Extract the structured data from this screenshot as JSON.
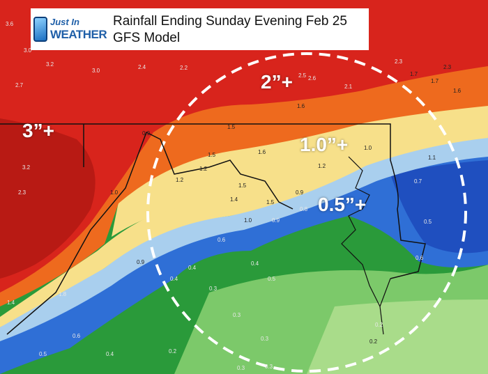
{
  "header": {
    "logo_line1": "Just In",
    "logo_line2": "WEATHER",
    "title_line1": "Rainfall Ending Sunday Evening Feb 25",
    "title_line2": "GFS Model"
  },
  "colors": {
    "red": "#d8241c",
    "dark_red": "#b81a14",
    "orange": "#ee6a1e",
    "light_orange": "#f4a340",
    "yellow": "#f7e08a",
    "light_blue": "#a9cfee",
    "blue": "#2f6fd6",
    "dark_blue": "#1f4fbf",
    "green": "#2a9a3a",
    "light_green": "#8fd17a"
  },
  "callouts": {
    "c3": "3”+",
    "c2": "2”+",
    "c1": "1.0”+",
    "c05": "0.5”+"
  },
  "values": [
    "3.6",
    "3.0",
    "3.2",
    "3.0",
    "2.4",
    "2.2",
    "2.7",
    "2.5",
    "2.6",
    "2.3",
    "2.1",
    "1.7",
    "2.3",
    "1.7",
    "1.6",
    "1.6",
    "1.5",
    "0.9",
    "1.5",
    "1.6",
    "1.0",
    "1.2",
    "1.2",
    "1.5",
    "1.1",
    "3.2",
    "2.3",
    "1.0",
    "1.2",
    "1.4",
    "1.5",
    "0.9",
    "0.8",
    "1.0",
    "0.9",
    "0.7",
    "0.5",
    "0.6",
    "0.6",
    "0.4",
    "0.4",
    "0.9",
    "0.4",
    "0.3",
    "0.5",
    "0.3",
    "0.3",
    "1.8",
    "1.4",
    "0.6",
    "0.2",
    "0.2",
    "0.4",
    "0.2",
    "0.3",
    "0.3",
    "0.5"
  ]
}
